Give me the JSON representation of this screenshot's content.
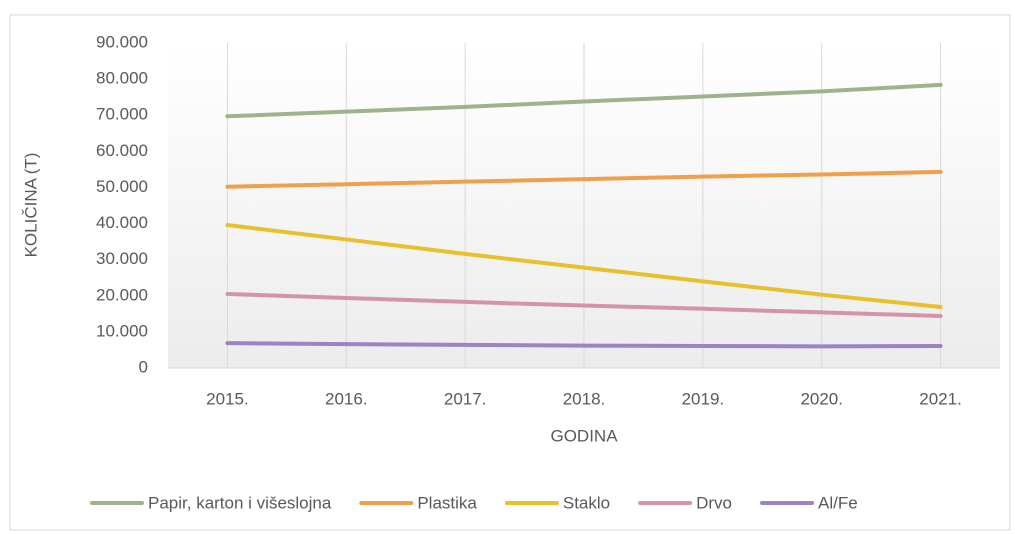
{
  "chart_data": {
    "type": "line",
    "x_label": "GODINA",
    "y_label": "KOLIČINA (T)",
    "categories": [
      "2015.",
      "2016.",
      "2017.",
      "2018.",
      "2019.",
      "2020.",
      "2021."
    ],
    "series": [
      {
        "name": "Papir, karton i višeslojna",
        "color": "#9fb38b",
        "values": [
          69700,
          71000,
          72300,
          73800,
          75200,
          76600,
          78400
        ]
      },
      {
        "name": "Plastika",
        "color": "#f0a04b",
        "values": [
          50200,
          50900,
          51600,
          52300,
          53000,
          53600,
          54300
        ]
      },
      {
        "name": "Staklo",
        "color": "#e8c02e",
        "values": [
          39600,
          35600,
          31600,
          27800,
          24000,
          20300,
          16900
        ]
      },
      {
        "name": "Drvo",
        "color": "#d394a9",
        "values": [
          20500,
          19400,
          18300,
          17300,
          16400,
          15400,
          14400
        ]
      },
      {
        "name": "Al/Fe",
        "color": "#9b83c4",
        "values": [
          6900,
          6600,
          6400,
          6200,
          6100,
          6000,
          6100
        ]
      }
    ],
    "ylim": [
      0,
      90000
    ],
    "yticks": [
      0,
      {
        "value": 10000,
        "label": "10.000"
      },
      {
        "value": 20000,
        "label": "20.000"
      },
      {
        "value": 30000,
        "label": "30.000"
      },
      {
        "value": 40000,
        "label": "40.000"
      },
      {
        "value": 50000,
        "label": "50.000"
      },
      {
        "value": 60000,
        "label": "60.000"
      },
      {
        "value": 70000,
        "label": "70.000"
      },
      {
        "value": 80000,
        "label": "80.000"
      },
      {
        "value": 90000,
        "label": "90.000"
      }
    ],
    "grid": "x",
    "legend": "bottom"
  }
}
